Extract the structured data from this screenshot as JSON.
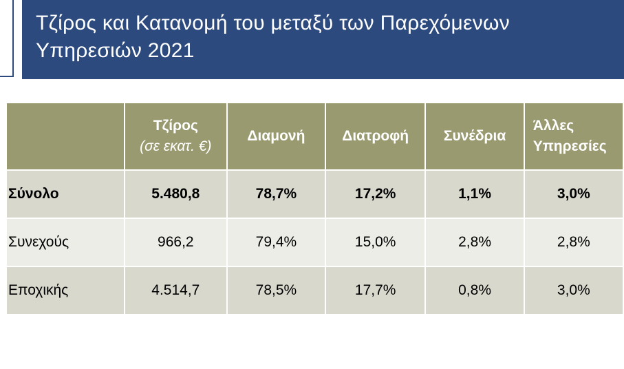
{
  "title": "Τζίρος και Κατανομή του μεταξύ των Παρεχόμενων Υπηρεσιών 2021",
  "table": {
    "columns": [
      "Τζίρος",
      "Διαμονή",
      "Διατροφή",
      "Συνέδρια",
      "Άλλες Υπηρεσίες"
    ],
    "turnover_unit": "(σε εκατ. €)",
    "rows": [
      {
        "label": "Σύνολο",
        "cells": [
          "5.480,8",
          "78,7%",
          "17,2%",
          "1,1%",
          "3,0%"
        ]
      },
      {
        "label": "Συνεχούς",
        "cells": [
          "966,2",
          "79,4%",
          "15,0%",
          "2,8%",
          "2,8%"
        ]
      },
      {
        "label": "Εποχικής",
        "cells": [
          "4.514,7",
          "78,5%",
          "17,7%",
          "0,8%",
          "3,0%"
        ]
      }
    ]
  }
}
